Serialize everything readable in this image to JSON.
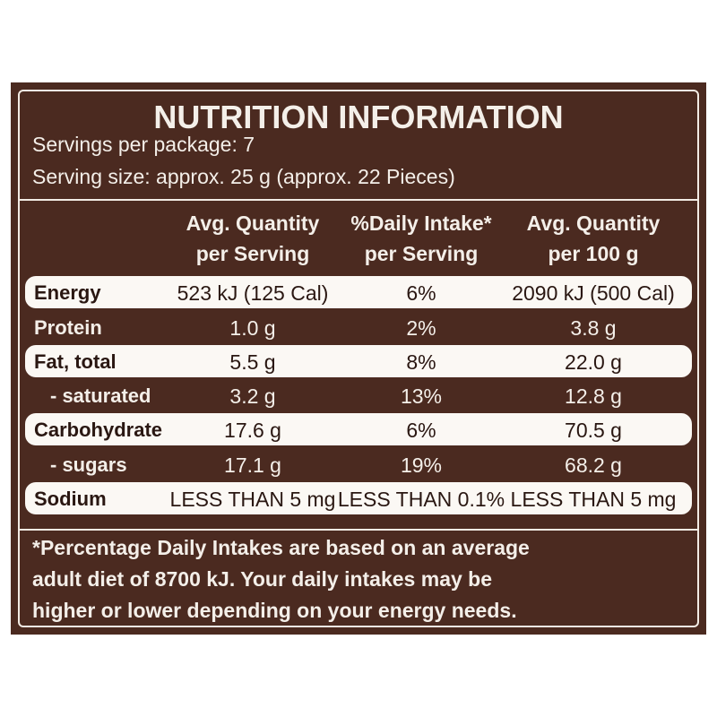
{
  "header": {
    "title": "NUTRITION INFORMATION",
    "servings": "Servings per package: 7",
    "serving_size": "Serving size: approx. 25 g (approx. 22 Pieces)"
  },
  "table": {
    "columns": [
      [
        "Avg. Quantity",
        "per Serving"
      ],
      [
        "%Daily Intake*",
        "per Serving"
      ],
      [
        "Avg. Quantity",
        "per 100 g"
      ]
    ],
    "rows": [
      {
        "name": "Energy",
        "cells": [
          "523 kJ (125 Cal)",
          "6%",
          "2090 kJ (500 Cal)"
        ],
        "highlight": true
      },
      {
        "name": "Protein",
        "cells": [
          "1.0 g",
          "2%",
          "3.8 g"
        ],
        "highlight": false
      },
      {
        "name": "Fat, total",
        "cells": [
          "5.5 g",
          "8%",
          "22.0 g"
        ],
        "highlight": true
      },
      {
        "name": "- saturated",
        "cells": [
          "3.2 g",
          "13%",
          "12.8 g"
        ],
        "highlight": false
      },
      {
        "name": "Carbohydrate",
        "cells": [
          "17.6 g",
          "6%",
          "70.5 g"
        ],
        "highlight": true
      },
      {
        "name": "- sugars",
        "cells": [
          "17.1 g",
          "19%",
          "68.2 g"
        ],
        "highlight": false
      },
      {
        "name": "Sodium",
        "cells": [
          "LESS THAN 5 mg",
          "LESS THAN 0.1%",
          "LESS THAN 5 mg"
        ],
        "highlight": true
      }
    ]
  },
  "footnote": [
    "*Percentage Daily Intakes are based on an average",
    "adult diet of 8700 kJ. Your daily intakes may be",
    "higher or lower depending on your energy needs."
  ]
}
